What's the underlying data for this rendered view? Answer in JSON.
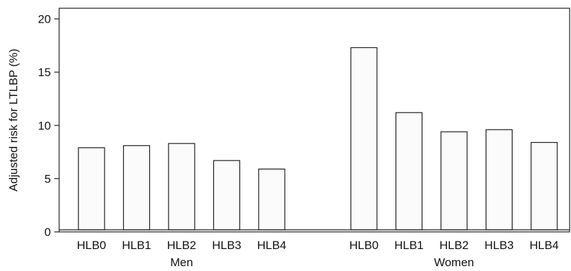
{
  "chart_data": {
    "type": "bar",
    "title": "",
    "ylabel": "Adjusted risk for LTLBP (%)",
    "ylim": [
      0,
      21
    ],
    "yticks": [
      0,
      5,
      10,
      15,
      20
    ],
    "grid": false,
    "groups": [
      {
        "name": "Men",
        "categories": [
          "HLB0",
          "HLB1",
          "HLB2",
          "HLB3",
          "HLB4"
        ],
        "values": [
          7.9,
          8.1,
          8.3,
          6.7,
          5.9
        ]
      },
      {
        "name": "Women",
        "categories": [
          "HLB0",
          "HLB1",
          "HLB2",
          "HLB3",
          "HLB4"
        ],
        "values": [
          17.3,
          11.2,
          9.4,
          9.6,
          8.4
        ]
      }
    ],
    "colors": {
      "bar_fill": "#fbfbfb",
      "bar_stroke": "#1a1a1a"
    }
  }
}
